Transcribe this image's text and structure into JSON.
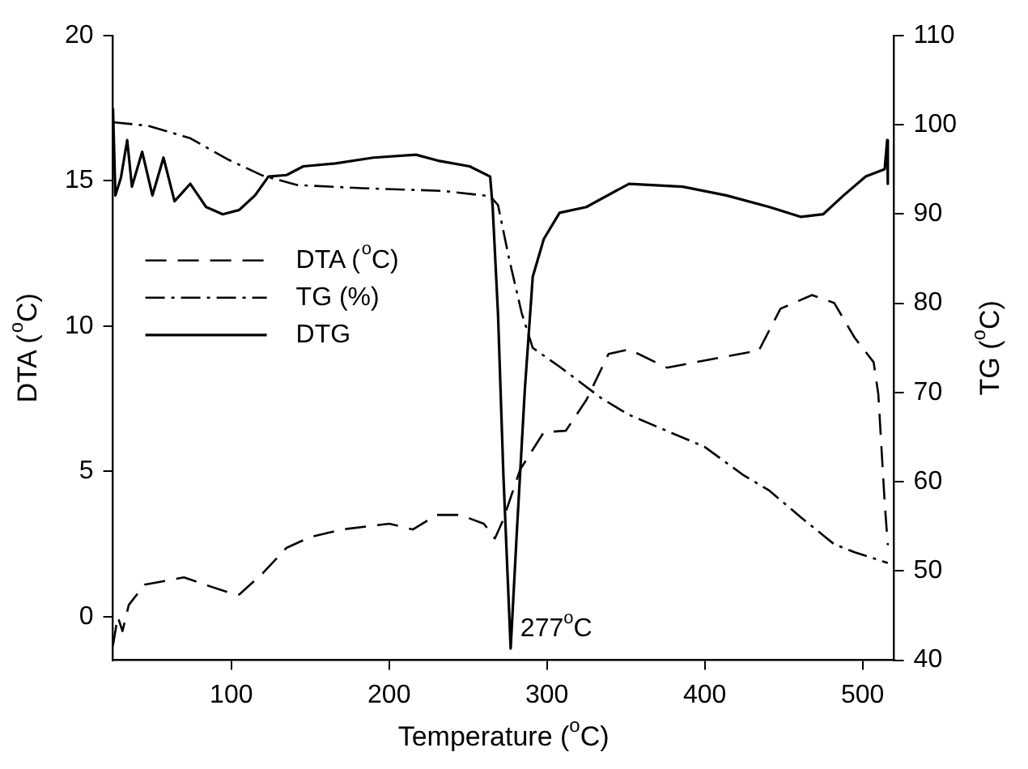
{
  "chart_data": {
    "type": "line",
    "xlabel": "Temperature ($^{o}$C)",
    "ylabel": "DTA ($^{o}$C)",
    "y2label": "TG ($^{o}$C)",
    "xlim": [
      25,
      520
    ],
    "xticks": [
      100,
      200,
      300,
      400,
      500
    ],
    "ylim": [
      -1.5,
      20
    ],
    "yticks": [
      0,
      5,
      10,
      15,
      20
    ],
    "y2lim": [
      40,
      110
    ],
    "y2ticks": [
      40,
      50,
      60,
      70,
      80,
      90,
      100,
      110
    ],
    "grid": false,
    "legend": "top left",
    "marker": "none",
    "annotations": [
      {
        "text": "277$^{o}$C",
        "x": 277,
        "y": -1.1
      }
    ],
    "series": [
      {
        "name": "DTA ($^{o}$C)",
        "color": "#000000",
        "line_style": "dashed",
        "x": [
          25,
          28,
          31,
          35,
          45,
          55,
          70,
          85,
          100,
          105,
          120,
          135,
          150,
          170,
          200,
          215,
          230,
          245,
          260,
          267,
          272,
          283,
          298,
          312,
          325,
          339,
          352,
          376,
          403,
          431,
          434,
          448,
          468,
          482,
          495,
          507,
          510,
          514,
          516
        ],
        "values": [
          -1.0,
          0.0,
          -0.5,
          0.4,
          1.1,
          1.2,
          1.35,
          1.07,
          0.8,
          0.76,
          1.5,
          2.37,
          2.74,
          3.0,
          3.2,
          3.0,
          3.5,
          3.5,
          3.2,
          2.69,
          3.3,
          5.06,
          6.35,
          6.4,
          7.46,
          9.04,
          9.2,
          8.57,
          8.85,
          9.13,
          9.13,
          10.6,
          11.07,
          10.8,
          9.6,
          8.76,
          7.65,
          3.94,
          2.46
        ]
      },
      {
        "name": "TG (%)",
        "color": "#000000",
        "line_style": "dashdot",
        "axis": "y2",
        "x": [
          25,
          47,
          74,
          98,
          120,
          142,
          183,
          234,
          264,
          269,
          276,
          284,
          291,
          308,
          335,
          352,
          400,
          424,
          441,
          461,
          482,
          495,
          516
        ],
        "values": [
          100.3,
          99.9,
          98.5,
          96.1,
          94.3,
          93.25,
          92.9,
          92.6,
          92.0,
          91.0,
          85.0,
          78.9,
          75.0,
          72.9,
          69.3,
          67.5,
          63.9,
          60.8,
          59.0,
          56.0,
          53.0,
          52.1,
          50.9
        ]
      },
      {
        "name": "DTG",
        "color": "#000000",
        "line_style": "solid",
        "x": [
          25,
          26.5,
          30,
          34,
          37,
          43.5,
          50,
          57,
          64,
          74,
          84,
          94.6,
          105,
          115,
          123.5,
          135,
          145.6,
          166,
          190,
          217,
          230.6,
          251,
          264,
          265.6,
          269,
          272.4,
          277,
          281,
          286,
          291,
          298,
          308,
          325,
          352,
          386,
          413.6,
          441,
          461,
          475,
          488,
          502,
          514,
          515.6,
          516
        ],
        "values": [
          17.5,
          14.5,
          15.1,
          16.4,
          14.8,
          16.0,
          14.5,
          15.8,
          14.3,
          14.9,
          14.1,
          13.85,
          14.0,
          14.5,
          15.15,
          15.2,
          15.5,
          15.6,
          15.8,
          15.9,
          15.7,
          15.5,
          15.15,
          14.1,
          10.4,
          4.87,
          -1.1,
          3.0,
          7.83,
          11.7,
          13.0,
          13.9,
          14.1,
          14.9,
          14.8,
          14.5,
          14.1,
          13.76,
          13.85,
          14.5,
          15.15,
          15.4,
          16.4,
          14.9
        ]
      }
    ]
  }
}
